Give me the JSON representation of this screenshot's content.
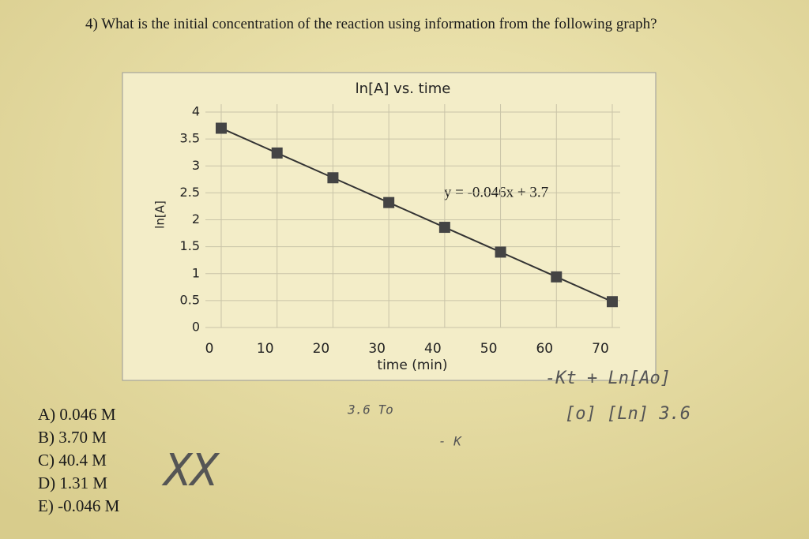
{
  "question": "4) What is the initial concentration of the reaction using information from the following graph?",
  "chart_data": {
    "type": "line",
    "title": "ln[A] vs. time",
    "x_label": "time (min)",
    "y_label": "ln[A]",
    "annotation": "y = -0.046x + 3.7",
    "x": [
      0,
      10,
      20,
      30,
      40,
      50,
      60,
      70
    ],
    "series": [
      {
        "name": "ln[A]",
        "color": "#333333",
        "values": [
          3.7,
          3.24,
          2.78,
          2.32,
          1.86,
          1.4,
          0.94,
          0.48
        ]
      }
    ],
    "xlim": [
      0,
      70
    ],
    "xticks": [
      0,
      10,
      20,
      30,
      40,
      50,
      60,
      70
    ],
    "ylim": [
      0,
      4
    ],
    "yticks": [
      0,
      0.5,
      1,
      1.5,
      2,
      2.5,
      3,
      3.5,
      4
    ],
    "grid": true
  },
  "answers": [
    "A) 0.046 M",
    "B) 3.70 M",
    "C) 40.4 M",
    "D) 1.31 M",
    "E) -0.046 M"
  ],
  "handwriting": [
    "-Kt + Ln[Ao]",
    "3.6  To",
    "- K",
    "XX",
    "[o] [Ln] 3.6"
  ]
}
